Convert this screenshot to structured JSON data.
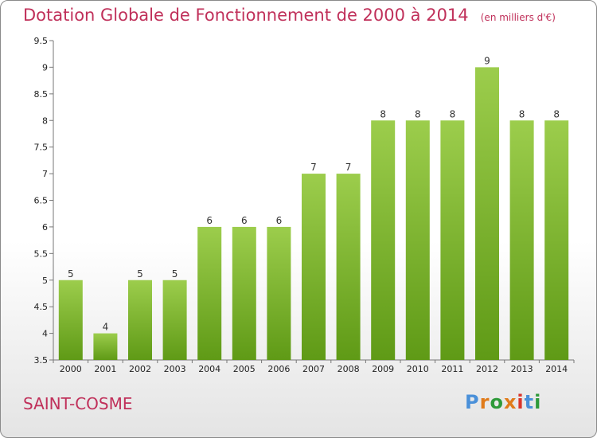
{
  "chart_data": {
    "type": "bar",
    "title": "Dotation Globale de Fonctionnement de 2000 à 2014",
    "subtitle": "(en milliers d'€)",
    "categories": [
      "2000",
      "2001",
      "2002",
      "2003",
      "2004",
      "2005",
      "2006",
      "2007",
      "2008",
      "2009",
      "2010",
      "2011",
      "2012",
      "2013",
      "2014"
    ],
    "values": [
      5,
      4,
      5,
      5,
      6,
      6,
      6,
      7,
      7,
      8,
      8,
      8,
      9,
      8,
      8
    ],
    "data_labels": [
      "5",
      "4",
      "5",
      "5",
      "6",
      "6",
      "6",
      "7",
      "7",
      "8",
      "8",
      "8",
      "9",
      "8",
      "8"
    ],
    "ylim": [
      3.5,
      9.5
    ],
    "yticks": [
      3.5,
      4,
      4.5,
      5,
      5.5,
      6,
      6.5,
      7,
      7.5,
      8,
      8.5,
      9,
      9.5
    ],
    "ytick_labels": [
      "3.5",
      "4",
      "4.5",
      "5",
      "5.5",
      "6",
      "6.5",
      "7",
      "7.5",
      "8",
      "8.5",
      "9",
      "9.5"
    ],
    "xlabel": "",
    "ylabel": "",
    "grid": false,
    "bar_color_top": "#9ccd4c",
    "bar_color_bottom": "#5f9a16"
  },
  "footer": {
    "place": "SAINT-COSME",
    "logo": "Proxiti",
    "logo_colors": [
      "#4a90d9",
      "#e07b1a",
      "#2e9a3a",
      "#e07b1a",
      "#d9342b",
      "#4a90d9",
      "#2e9a3a"
    ]
  },
  "colors": {
    "title": "#c0305a"
  }
}
